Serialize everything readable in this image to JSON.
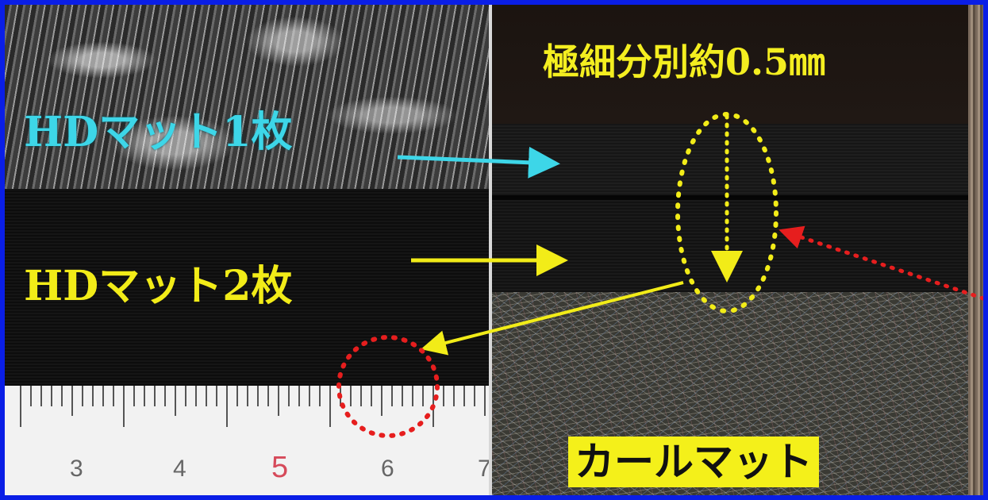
{
  "labels": {
    "hd_mat_1": "HDマット1枚",
    "hd_mat_2": "HDマット2枚",
    "fine_separation": "極細分別約0.5㎜",
    "curl_mat": "カールマット"
  },
  "ruler": {
    "numbers": [
      "3",
      "4",
      "5",
      "6",
      "7"
    ]
  },
  "colors": {
    "frame_border": "#0a1ee6",
    "cyan_label": "#3dd6e8",
    "yellow_label": "#f2ec18",
    "red_dotted": "#e61e1e",
    "label_box_bg": "#f4f01a"
  }
}
